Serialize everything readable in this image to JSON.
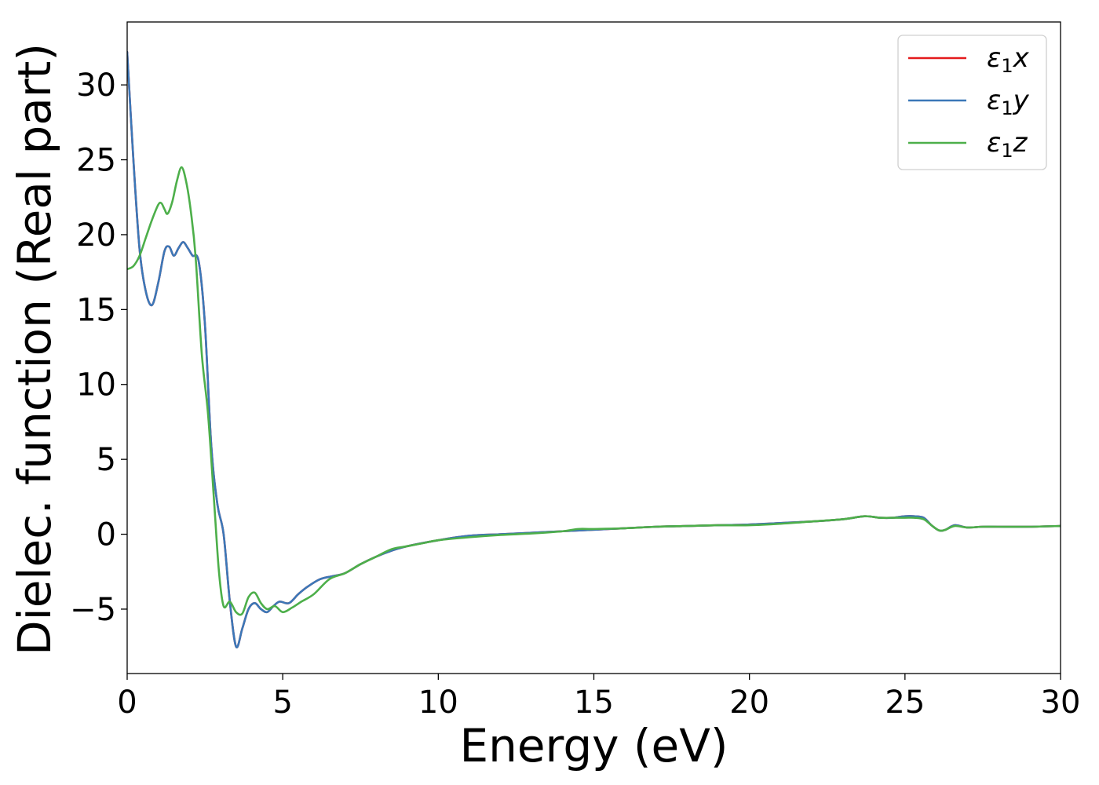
{
  "chart_data": {
    "type": "line",
    "xlabel": "Energy (eV)",
    "ylabel": "Dielec. function (Real part)",
    "xlim": [
      0,
      30
    ],
    "ylim": [
      -9.3,
      34.2
    ],
    "x_ticks": [
      0,
      5,
      10,
      15,
      20,
      25,
      30
    ],
    "x_tick_labels": [
      "0",
      "5",
      "10",
      "15",
      "20",
      "25",
      "30"
    ],
    "y_ticks": [
      -5,
      0,
      5,
      10,
      15,
      20,
      25,
      30
    ],
    "y_tick_labels": [
      "−5",
      "0",
      "5",
      "10",
      "15",
      "20",
      "25",
      "30"
    ],
    "grid": false,
    "legend_position": "top-right",
    "series": [
      {
        "name": "ε₁x",
        "legend": {
          "base": "ε",
          "sub": "1",
          "var": "x"
        },
        "color": "#e41a1c",
        "x": [
          0,
          0.2,
          0.4,
          0.6,
          0.8,
          1.0,
          1.2,
          1.35,
          1.5,
          1.65,
          1.8,
          1.95,
          2.1,
          2.3,
          2.5,
          2.7,
          2.9,
          3.1,
          3.3,
          3.5,
          3.7,
          3.9,
          4.1,
          4.3,
          4.5,
          4.7,
          4.9,
          5.2,
          5.5,
          5.8,
          6.2,
          6.6,
          7.0,
          7.5,
          8.0,
          8.5,
          9.0,
          10.0,
          11.0,
          12.0,
          13.0,
          14.0,
          15.0,
          16.0,
          17.0,
          18.0,
          19.0,
          20.0,
          21.0,
          22.0,
          23.0,
          23.7,
          24.2,
          24.6,
          25.0,
          25.3,
          25.6,
          25.85,
          26.1,
          26.3,
          26.6,
          27.0,
          27.5,
          28.0,
          29.0,
          30.0
        ],
        "y": [
          32.2,
          25.0,
          19.0,
          16.2,
          15.3,
          16.8,
          18.9,
          19.2,
          18.6,
          19.1,
          19.5,
          19.1,
          18.6,
          18.2,
          14.0,
          6.0,
          2.0,
          0.0,
          -4.5,
          -7.5,
          -6.3,
          -5.0,
          -4.6,
          -5.0,
          -5.2,
          -4.8,
          -4.5,
          -4.6,
          -4.0,
          -3.5,
          -3.0,
          -2.8,
          -2.6,
          -2.0,
          -1.5,
          -1.1,
          -0.8,
          -0.4,
          -0.1,
          0.0,
          0.1,
          0.2,
          0.3,
          0.4,
          0.5,
          0.55,
          0.6,
          0.65,
          0.75,
          0.85,
          1.0,
          1.2,
          1.1,
          1.1,
          1.2,
          1.2,
          1.1,
          0.6,
          0.25,
          0.3,
          0.6,
          0.45,
          0.5,
          0.5,
          0.5,
          0.55
        ]
      },
      {
        "name": "ε₁y",
        "legend": {
          "base": "ε",
          "sub": "1",
          "var": "y"
        },
        "color": "#3b78b8",
        "x": [
          0,
          0.2,
          0.4,
          0.6,
          0.8,
          1.0,
          1.2,
          1.35,
          1.5,
          1.65,
          1.8,
          1.95,
          2.1,
          2.3,
          2.5,
          2.7,
          2.9,
          3.1,
          3.3,
          3.5,
          3.7,
          3.9,
          4.1,
          4.3,
          4.5,
          4.7,
          4.9,
          5.2,
          5.5,
          5.8,
          6.2,
          6.6,
          7.0,
          7.5,
          8.0,
          8.5,
          9.0,
          10.0,
          11.0,
          12.0,
          13.0,
          14.0,
          15.0,
          16.0,
          17.0,
          18.0,
          19.0,
          20.0,
          21.0,
          22.0,
          23.0,
          23.7,
          24.2,
          24.6,
          25.0,
          25.3,
          25.6,
          25.85,
          26.1,
          26.3,
          26.6,
          27.0,
          27.5,
          28.0,
          29.0,
          30.0
        ],
        "y": [
          32.2,
          25.0,
          19.0,
          16.2,
          15.3,
          16.8,
          18.9,
          19.2,
          18.6,
          19.1,
          19.5,
          19.1,
          18.6,
          18.2,
          14.0,
          6.0,
          2.0,
          0.0,
          -4.5,
          -7.5,
          -6.3,
          -5.0,
          -4.6,
          -5.0,
          -5.2,
          -4.8,
          -4.5,
          -4.6,
          -4.0,
          -3.5,
          -3.0,
          -2.8,
          -2.6,
          -2.0,
          -1.5,
          -1.1,
          -0.8,
          -0.4,
          -0.1,
          0.0,
          0.1,
          0.2,
          0.3,
          0.4,
          0.5,
          0.55,
          0.6,
          0.65,
          0.75,
          0.85,
          1.0,
          1.2,
          1.1,
          1.1,
          1.2,
          1.2,
          1.1,
          0.6,
          0.25,
          0.3,
          0.6,
          0.45,
          0.5,
          0.5,
          0.5,
          0.55
        ]
      },
      {
        "name": "ε₁z",
        "legend": {
          "base": "ε",
          "sub": "1",
          "var": "z"
        },
        "color": "#4daf4a",
        "x": [
          0,
          0.2,
          0.4,
          0.6,
          0.8,
          1.0,
          1.1,
          1.2,
          1.3,
          1.45,
          1.6,
          1.75,
          1.9,
          2.05,
          2.2,
          2.4,
          2.6,
          2.8,
          2.95,
          3.1,
          3.3,
          3.5,
          3.7,
          3.9,
          4.1,
          4.3,
          4.5,
          4.75,
          5.0,
          5.3,
          5.6,
          6.0,
          6.5,
          7.0,
          7.5,
          8.0,
          8.5,
          9.0,
          9.5,
          10.0,
          11.0,
          12.0,
          13.0,
          14.0,
          14.5,
          15.0,
          16.0,
          17.0,
          18.0,
          19.0,
          20.0,
          21.0,
          22.0,
          23.0,
          23.7,
          24.2,
          24.6,
          25.0,
          25.3,
          25.6,
          25.85,
          26.1,
          26.3,
          26.6,
          27.0,
          27.5,
          28.0,
          29.0,
          30.0
        ],
        "y": [
          17.7,
          17.9,
          18.6,
          19.8,
          21.0,
          22.0,
          22.1,
          21.7,
          21.4,
          22.2,
          23.6,
          24.5,
          23.5,
          21.5,
          18.5,
          12.0,
          8.0,
          2.0,
          -2.5,
          -4.8,
          -4.5,
          -5.2,
          -5.3,
          -4.2,
          -3.9,
          -4.6,
          -5.0,
          -4.8,
          -5.2,
          -4.9,
          -4.5,
          -4.0,
          -3.0,
          -2.6,
          -2.0,
          -1.5,
          -1.0,
          -0.8,
          -0.6,
          -0.4,
          -0.2,
          -0.05,
          0.05,
          0.2,
          0.35,
          0.35,
          0.4,
          0.5,
          0.55,
          0.6,
          0.6,
          0.7,
          0.85,
          1.0,
          1.2,
          1.1,
          1.1,
          1.1,
          1.1,
          1.0,
          0.6,
          0.25,
          0.3,
          0.55,
          0.45,
          0.5,
          0.5,
          0.5,
          0.55
        ]
      }
    ]
  }
}
